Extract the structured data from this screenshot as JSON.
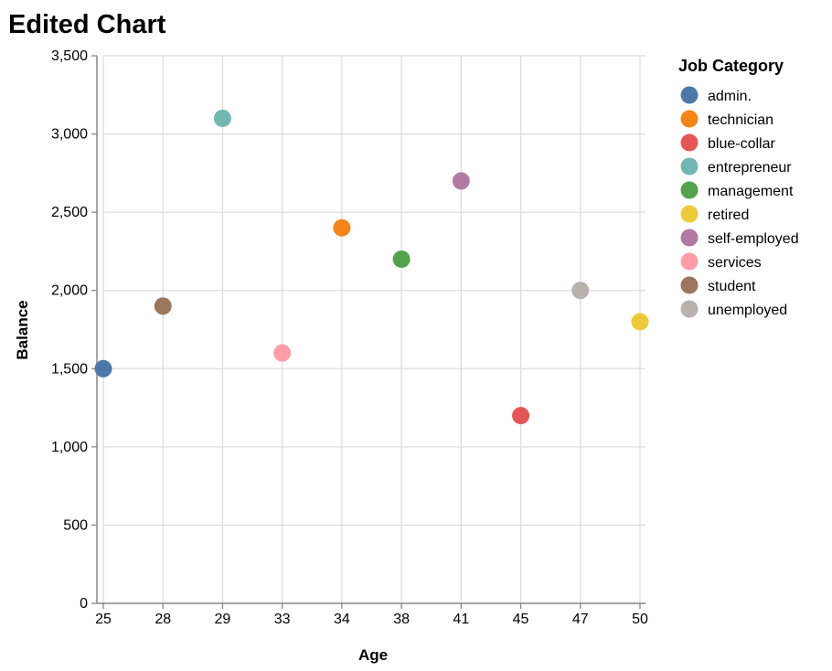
{
  "chart_data": {
    "type": "scatter",
    "title": "Edited Chart",
    "xlabel": "Age",
    "ylabel": "Balance",
    "x_axis_type": "categorical",
    "x_categories": [
      "25",
      "28",
      "29",
      "33",
      "34",
      "38",
      "41",
      "45",
      "47",
      "50"
    ],
    "ylim": [
      0,
      3500
    ],
    "y_ticks": [
      0,
      500,
      1000,
      1500,
      2000,
      2500,
      3000,
      3500
    ],
    "y_tick_labels": [
      "0",
      "500",
      "1,000",
      "1,500",
      "2,000",
      "2,500",
      "3,000",
      "3,500"
    ],
    "grid": true,
    "legend": {
      "title": "Job Category",
      "position": "right"
    },
    "series": [
      {
        "name": "admin.",
        "color": "#4c78a8",
        "points": [
          {
            "x": "25",
            "y": 1500
          }
        ]
      },
      {
        "name": "technician",
        "color": "#f58518",
        "points": [
          {
            "x": "34",
            "y": 2400
          }
        ]
      },
      {
        "name": "blue-collar",
        "color": "#e45756",
        "points": [
          {
            "x": "45",
            "y": 1200
          }
        ]
      },
      {
        "name": "entrepreneur",
        "color": "#72b7b2",
        "points": [
          {
            "x": "29",
            "y": 3100
          }
        ]
      },
      {
        "name": "management",
        "color": "#54a24b",
        "points": [
          {
            "x": "38",
            "y": 2200
          }
        ]
      },
      {
        "name": "retired",
        "color": "#eeca3b",
        "points": [
          {
            "x": "50",
            "y": 1800
          }
        ]
      },
      {
        "name": "self-employed",
        "color": "#b279a2",
        "points": [
          {
            "x": "41",
            "y": 2700
          }
        ]
      },
      {
        "name": "services",
        "color": "#ff9da6",
        "points": [
          {
            "x": "33",
            "y": 1600
          }
        ]
      },
      {
        "name": "student",
        "color": "#9d755d",
        "points": [
          {
            "x": "28",
            "y": 1900
          }
        ]
      },
      {
        "name": "unemployed",
        "color": "#bab0ac",
        "points": [
          {
            "x": "47",
            "y": 2000
          }
        ]
      }
    ]
  }
}
